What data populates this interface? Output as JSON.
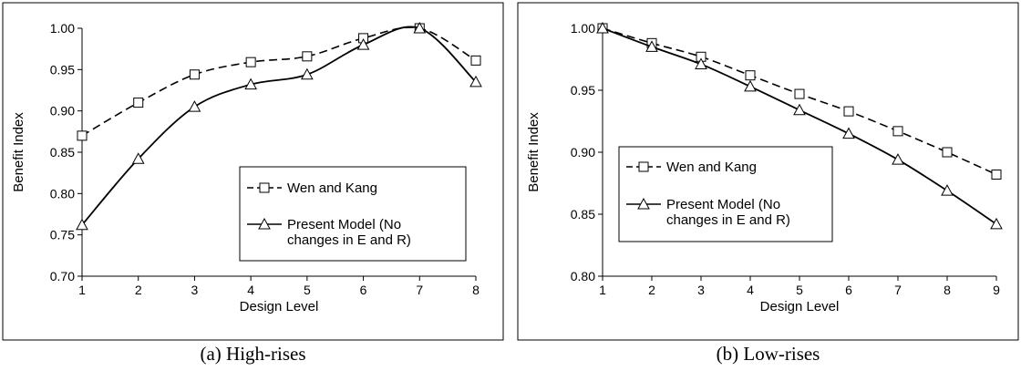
{
  "figures": [
    {
      "caption": "(a) High-rises",
      "chart_data": {
        "type": "line",
        "title": "",
        "xlabel": "Design Level",
        "ylabel": "Benefit Index",
        "x": [
          1,
          2,
          3,
          4,
          5,
          6,
          7,
          8
        ],
        "xticks": [
          "1",
          "2",
          "3",
          "4",
          "5",
          "6",
          "7",
          "8"
        ],
        "ylim": [
          0.7,
          1.0
        ],
        "yticks": [
          "0.70",
          "0.75",
          "0.80",
          "0.85",
          "0.90",
          "0.95",
          "1.00"
        ],
        "grid": false,
        "legend_position": "right-center",
        "series": [
          {
            "name": "Wen and Kang",
            "marker": "square",
            "line": "dashed",
            "values": [
              0.87,
              0.91,
              0.944,
              0.959,
              0.966,
              0.988,
              1.0,
              0.961
            ]
          },
          {
            "name": "Present Model (No changes in E and R)",
            "name_lines": [
              "Present Model (No",
              "changes in E and R)"
            ],
            "marker": "triangle",
            "line": "solid",
            "values": [
              0.762,
              0.842,
              0.905,
              0.932,
              0.944,
              0.98,
              1.0,
              0.935
            ]
          }
        ]
      }
    },
    {
      "caption": "(b) Low-rises",
      "chart_data": {
        "type": "line",
        "title": "",
        "xlabel": "Design Level",
        "ylabel": "Benefit Index",
        "x": [
          1,
          2,
          3,
          4,
          5,
          6,
          7,
          8,
          9
        ],
        "xticks": [
          "1",
          "2",
          "3",
          "4",
          "5",
          "6",
          "7",
          "8",
          "9"
        ],
        "ylim": [
          0.8,
          1.0
        ],
        "yticks": [
          "0.80",
          "0.85",
          "0.90",
          "0.95",
          "1.00"
        ],
        "grid": false,
        "legend_position": "left-center",
        "series": [
          {
            "name": "Wen and Kang",
            "marker": "square",
            "line": "dashed",
            "values": [
              1.0,
              0.988,
              0.977,
              0.962,
              0.947,
              0.933,
              0.917,
              0.9,
              0.882
            ]
          },
          {
            "name": "Present Model (No changes in E and R)",
            "name_lines": [
              "Present Model (No",
              "changes in E and R)"
            ],
            "marker": "triangle",
            "line": "solid",
            "values": [
              1.0,
              0.985,
              0.971,
              0.953,
              0.934,
              0.915,
              0.894,
              0.869,
              0.842
            ]
          }
        ]
      }
    }
  ]
}
